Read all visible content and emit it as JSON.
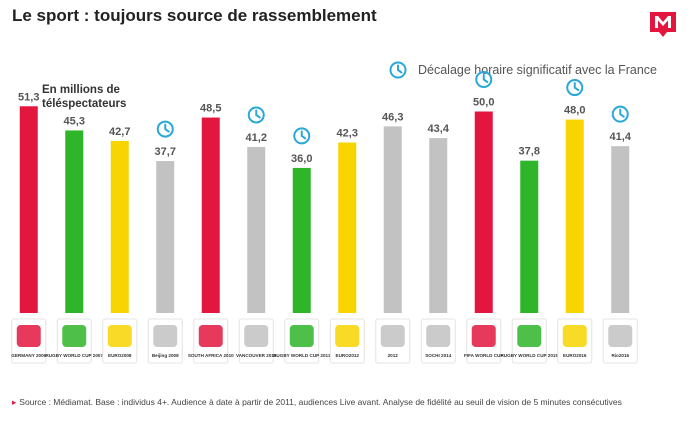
{
  "title": "Le sport : toujours source de rassemblement",
  "legend_text": "Décalage horaire significatif avec la France",
  "unit_label": "En millions de téléspectateurs",
  "source_text": "Source : Médiamat. Base : individus 4+. Audience à date à partir de 2011, audiences Live avant. Analyse de fidélité au seuil de vision de 5 minutes consécutives",
  "colors": {
    "red": "#e2163e",
    "green": "#2fb52a",
    "yellow": "#f8d400",
    "grey": "#c2c2c2",
    "clock": "#2aa8d8"
  },
  "chart_data": {
    "type": "bar",
    "unit": "En millions de téléspectateurs",
    "ylim": [
      0,
      60
    ],
    "grid": false,
    "legend": "top-right",
    "bars": [
      {
        "value": 51.3,
        "label": "51,3",
        "color": "red",
        "clock": false,
        "logo": "world-cup-2006-logo",
        "logo_text": "GERMANY 2006"
      },
      {
        "value": 45.3,
        "label": "45,3",
        "color": "green",
        "clock": false,
        "logo": "rugby-world-cup-2007-logo",
        "logo_text": "RUGBY WORLD CUP 2007"
      },
      {
        "value": 42.7,
        "label": "42,7",
        "color": "yellow",
        "clock": false,
        "logo": "euro-2008-logo",
        "logo_text": "EURO2008"
      },
      {
        "value": 37.7,
        "label": "37,7",
        "color": "grey",
        "clock": true,
        "logo": "beijing-2008-logo",
        "logo_text": "Beijing 2008"
      },
      {
        "value": 48.5,
        "label": "48,5",
        "color": "red",
        "clock": false,
        "logo": "world-cup-2010-logo",
        "logo_text": "SOUTH AFRICA 2010"
      },
      {
        "value": 41.2,
        "label": "41,2",
        "color": "grey",
        "clock": true,
        "logo": "vancouver-2010-logo",
        "logo_text": "VANCOUVER 2010"
      },
      {
        "value": 36.0,
        "label": "36,0",
        "color": "green",
        "clock": true,
        "logo": "rugby-world-cup-2011-logo",
        "logo_text": "RUGBY WORLD CUP 2011"
      },
      {
        "value": 42.3,
        "label": "42,3",
        "color": "yellow",
        "clock": false,
        "logo": "euro-2012-logo",
        "logo_text": "EURO2012"
      },
      {
        "value": 46.3,
        "label": "46,3",
        "color": "grey",
        "clock": false,
        "logo": "london-2012-logo",
        "logo_text": "2012"
      },
      {
        "value": 43.4,
        "label": "43,4",
        "color": "grey",
        "clock": false,
        "logo": "sochi-2014-logo",
        "logo_text": "SOCHI 2014"
      },
      {
        "value": 50.0,
        "label": "50,0",
        "color": "red",
        "clock": true,
        "logo": "world-cup-2014-logo",
        "logo_text": "FIFA WORLD CUP"
      },
      {
        "value": 37.8,
        "label": "37,8",
        "color": "green",
        "clock": false,
        "logo": "rugby-world-cup-2015-logo",
        "logo_text": "RUGBY WORLD CUP 2015"
      },
      {
        "value": 48.0,
        "label": "48,0",
        "color": "yellow",
        "clock": true,
        "logo": "euro-2016-logo",
        "logo_text": "EURO2016"
      },
      {
        "value": 41.4,
        "label": "41,4",
        "color": "grey",
        "clock": true,
        "logo": "rio-2016-logo",
        "logo_text": "Rio2016"
      }
    ]
  }
}
